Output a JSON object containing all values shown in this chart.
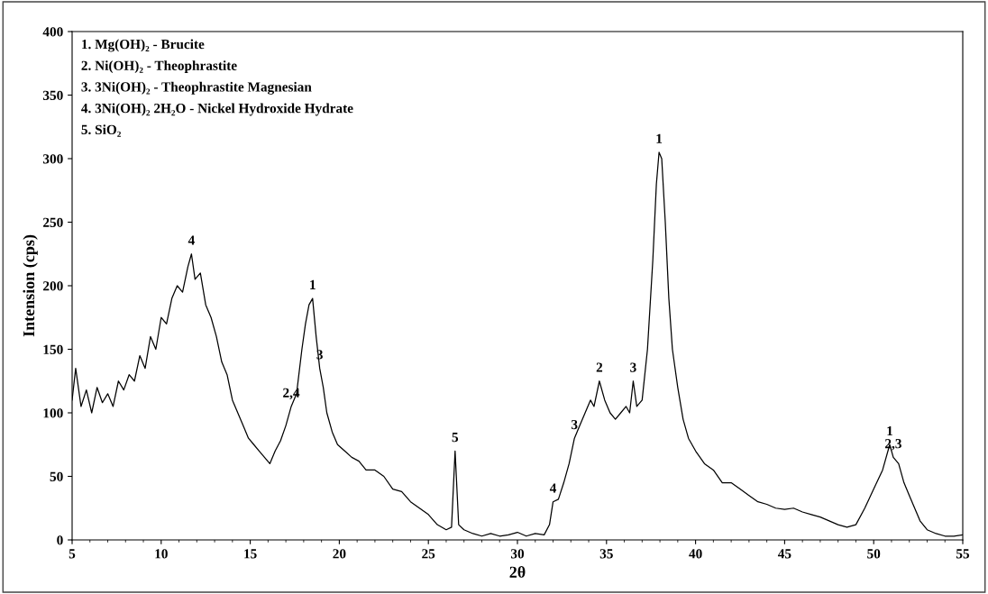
{
  "chart_data": {
    "type": "line",
    "xlabel": "2θ",
    "ylabel": "Intension (cps)",
    "x": [
      5,
      5.2,
      5.5,
      5.8,
      6.1,
      6.4,
      6.7,
      7,
      7.3,
      7.6,
      7.9,
      8.2,
      8.5,
      8.8,
      9.1,
      9.4,
      9.7,
      10,
      10.3,
      10.6,
      10.9,
      11.2,
      11.5,
      11.7,
      11.9,
      12.2,
      12.5,
      12.8,
      13.1,
      13.4,
      13.7,
      14,
      14.3,
      14.6,
      14.9,
      15.2,
      15.5,
      15.8,
      16.1,
      16.4,
      16.7,
      17,
      17.3,
      17.6,
      17.9,
      18.1,
      18.3,
      18.5,
      18.7,
      18.9,
      19.1,
      19.3,
      19.6,
      19.9,
      20.3,
      20.7,
      21.1,
      21.5,
      22,
      22.5,
      23,
      23.5,
      24,
      24.5,
      25,
      25.5,
      26,
      26.3,
      26.5,
      26.7,
      27,
      27.5,
      28,
      28.5,
      29,
      29.5,
      30,
      30.5,
      31,
      31.5,
      31.8,
      32,
      32.3,
      32.6,
      32.9,
      33.2,
      33.5,
      33.8,
      34.1,
      34.3,
      34.6,
      34.9,
      35.2,
      35.5,
      35.8,
      36.1,
      36.3,
      36.5,
      36.7,
      37,
      37.3,
      37.6,
      37.8,
      37.95,
      38.1,
      38.3,
      38.5,
      38.7,
      39,
      39.3,
      39.6,
      40,
      40.5,
      41,
      41.5,
      42,
      42.5,
      43,
      43.5,
      44,
      44.5,
      45,
      45.5,
      46,
      46.5,
      47,
      47.5,
      48,
      48.5,
      49,
      49.5,
      50,
      50.5,
      50.9,
      51.1,
      51.4,
      51.7,
      52,
      52.3,
      52.6,
      53,
      53.5,
      54,
      54.5,
      55
    ],
    "values": [
      110,
      135,
      105,
      118,
      100,
      120,
      108,
      115,
      105,
      125,
      118,
      130,
      125,
      145,
      135,
      160,
      150,
      175,
      170,
      190,
      200,
      195,
      215,
      225,
      205,
      210,
      185,
      175,
      160,
      140,
      130,
      110,
      100,
      90,
      80,
      75,
      70,
      65,
      60,
      70,
      78,
      90,
      105,
      115,
      150,
      170,
      185,
      190,
      160,
      135,
      120,
      100,
      85,
      75,
      70,
      65,
      62,
      55,
      55,
      50,
      40,
      38,
      30,
      25,
      20,
      12,
      8,
      10,
      70,
      12,
      8,
      5,
      3,
      5,
      3,
      4,
      6,
      3,
      5,
      4,
      12,
      30,
      32,
      45,
      60,
      80,
      90,
      100,
      110,
      105,
      125,
      110,
      100,
      95,
      100,
      105,
      100,
      125,
      105,
      110,
      150,
      220,
      280,
      305,
      300,
      250,
      190,
      150,
      120,
      95,
      80,
      70,
      60,
      55,
      45,
      45,
      40,
      35,
      30,
      28,
      25,
      24,
      25,
      22,
      20,
      18,
      15,
      12,
      10,
      12,
      25,
      40,
      55,
      75,
      65,
      60,
      45,
      35,
      25,
      15,
      8,
      5,
      3,
      3,
      4
    ],
    "color": "#000000",
    "xlim": [
      5,
      55
    ],
    "ylim": [
      0,
      400
    ],
    "xticks": [
      5,
      10,
      15,
      20,
      25,
      30,
      35,
      40,
      45,
      50,
      55
    ],
    "yticks": [
      0,
      50,
      100,
      150,
      200,
      250,
      300,
      350,
      400
    ],
    "grid": false,
    "annotations": [
      "1. Mg(OH)₂ - Brucite",
      "2. Ni(OH)₂ - Theophrastite",
      "3. 3Ni(OH)₂ - Theophrastite Magnesian",
      "4. 3Ni(OH)₂ 2H₂O - Nickel Hydroxide Hydrate",
      "5. SiO₂",
      {
        "text": "4",
        "x": 11.7,
        "y": 225
      },
      {
        "text": "1",
        "x": 18.5,
        "y": 190
      },
      {
        "text": "2,4",
        "x": 17.3,
        "y": 105
      },
      {
        "text": "3",
        "x": 18.9,
        "y": 135
      },
      {
        "text": "5",
        "x": 26.5,
        "y": 70
      },
      {
        "text": "4",
        "x": 32,
        "y": 30
      },
      {
        "text": "3",
        "x": 33.2,
        "y": 80
      },
      {
        "text": "2",
        "x": 34.6,
        "y": 125
      },
      {
        "text": "3",
        "x": 36.5,
        "y": 125
      },
      {
        "text": "1",
        "x": 37.95,
        "y": 305
      },
      {
        "text": "1",
        "x": 50.9,
        "y": 75
      },
      {
        "text": "2,3",
        "x": 51.1,
        "y": 65
      }
    ]
  }
}
